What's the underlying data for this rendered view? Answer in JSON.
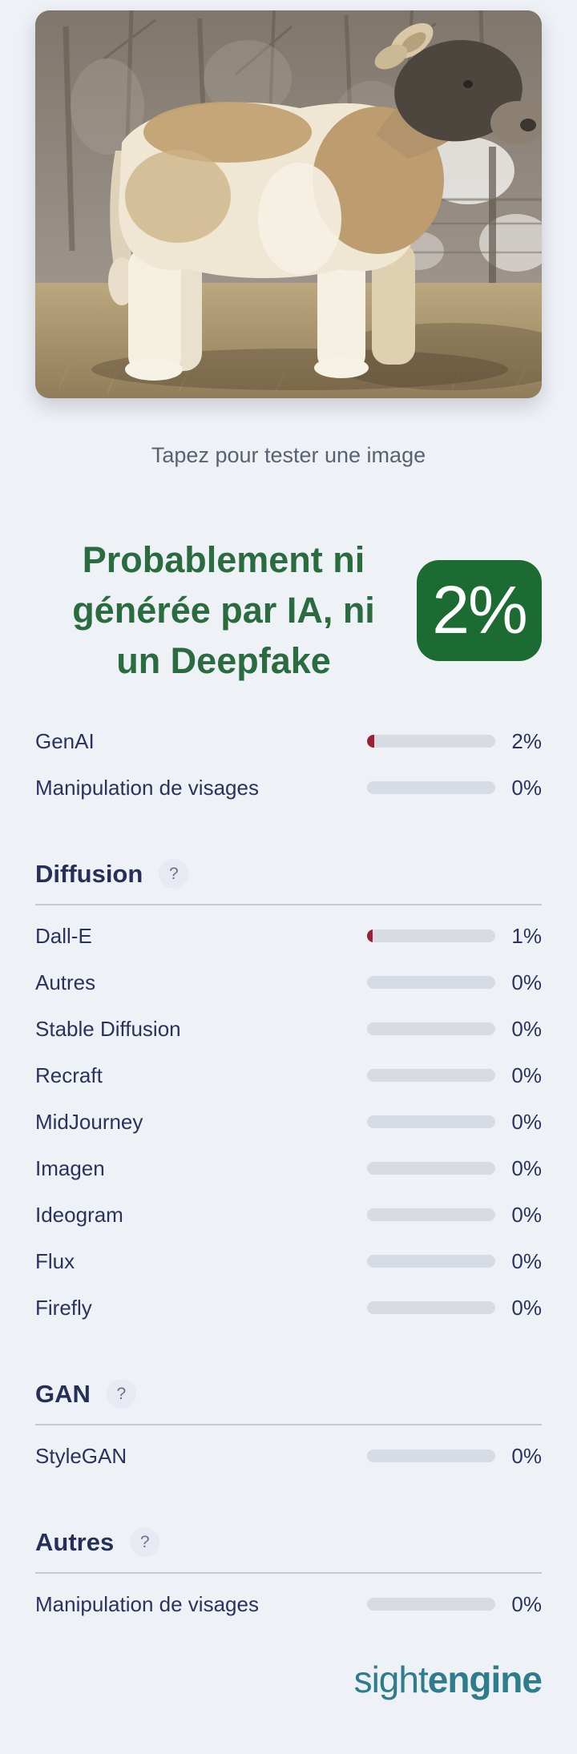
{
  "page": {
    "background": "#eef1f6",
    "accent_green": "#1c6b33",
    "accent_navy": "#2b335c",
    "bar_track_color": "#d6dbe4",
    "bar_fill_color": "#9d1f36"
  },
  "photo": {
    "name": "show-steer-photo"
  },
  "caption": "Tapez pour tester une image",
  "verdict": {
    "title": "Probablement ni générée par IA, ni un Deepfake",
    "title_lines": [
      "Probablement ni",
      "générée par IA, ni",
      "un Deepfake"
    ],
    "score": "2%",
    "badge_color": "#1c6b33",
    "title_color": "#2a6b3f"
  },
  "summary_rows": [
    {
      "label": "GenAI",
      "value": "2%",
      "percent": 2
    },
    {
      "label": "Manipulation de visages",
      "value": "0%",
      "percent": 0
    }
  ],
  "sections": [
    {
      "title": "Diffusion",
      "help_label": "?",
      "rows": [
        {
          "label": "Dall-E",
          "value": "1%",
          "percent": 1
        },
        {
          "label": "Autres",
          "value": "0%",
          "percent": 0
        },
        {
          "label": "Stable Diffusion",
          "value": "0%",
          "percent": 0
        },
        {
          "label": "Recraft",
          "value": "0%",
          "percent": 0
        },
        {
          "label": "MidJourney",
          "value": "0%",
          "percent": 0
        },
        {
          "label": "Imagen",
          "value": "0%",
          "percent": 0
        },
        {
          "label": "Ideogram",
          "value": "0%",
          "percent": 0
        },
        {
          "label": "Flux",
          "value": "0%",
          "percent": 0
        },
        {
          "label": "Firefly",
          "value": "0%",
          "percent": 0
        }
      ]
    },
    {
      "title": "GAN",
      "help_label": "?",
      "rows": [
        {
          "label": "StyleGAN",
          "value": "0%",
          "percent": 0
        }
      ]
    },
    {
      "title": "Autres",
      "help_label": "?",
      "rows": [
        {
          "label": "Manipulation de visages",
          "value": "0%",
          "percent": 0
        }
      ]
    }
  ],
  "footer": {
    "brand_light": "sight",
    "brand_bold": "engine",
    "brand_color": "#2e7c8c"
  }
}
